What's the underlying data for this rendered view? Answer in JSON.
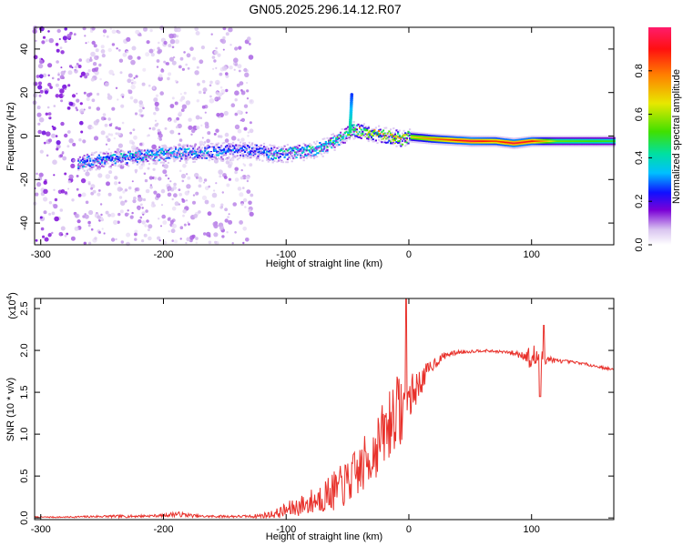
{
  "title": "GN05.2025.296.14.12.R07",
  "chart_data": [
    {
      "type": "heatmap",
      "xlabel": "Height of straight line (km)",
      "ylabel": "Frequency (Hz)",
      "xlim": [
        -305,
        167
      ],
      "ylim": [
        -50,
        50
      ],
      "xticks": [
        -300,
        -200,
        -100,
        0,
        100
      ],
      "yticks": [
        -40,
        -20,
        0,
        20,
        40
      ],
      "colorbar": {
        "label": "Normalized spectral amplitude",
        "range": [
          0,
          1
        ],
        "ticks": [
          "0.0",
          "0.2",
          "0.4",
          "0.6",
          "0.8"
        ],
        "tick_values": [
          0.0,
          0.2,
          0.4,
          0.6,
          0.8
        ]
      },
      "ridge": {
        "x": [
          -270,
          -240,
          -200,
          -160,
          -130,
          -110,
          -90,
          -70,
          -55,
          -45,
          -35,
          -25,
          -15,
          -5,
          0,
          20,
          50,
          70,
          85,
          100,
          120,
          167
        ],
        "y": [
          -12,
          -10,
          -8,
          -7,
          -6,
          -8,
          -7,
          -5,
          0,
          3,
          2,
          1,
          0,
          -1,
          0,
          -1,
          -2,
          -2,
          -3,
          -2,
          -2,
          -2
        ],
        "amplitude": [
          0.35,
          0.4,
          0.4,
          0.35,
          0.3,
          0.4,
          0.45,
          0.45,
          0.5,
          0.6,
          0.7,
          0.75,
          0.8,
          0.7,
          0.65,
          0.8,
          0.95,
          0.85,
          0.95,
          0.9,
          0.55,
          0.5
        ]
      }
    },
    {
      "type": "line",
      "xlabel": "Height of straight line (km)",
      "ylabel": "SNR (10 * v/v)",
      "y_multiplier": "(x10",
      "y_multiplier_exp": "4",
      "y_multiplier_close": ")",
      "xlim": [
        -305,
        167
      ],
      "ylim": [
        -0.02,
        2.62
      ],
      "xticks": [
        -300,
        -200,
        -100,
        0,
        100
      ],
      "yticks": [
        0.0,
        0.5,
        1.0,
        1.5,
        2.0,
        2.5
      ],
      "ytick_labels": [
        "0.0",
        "0.5",
        "1.0",
        "1.5",
        "2.0",
        "2.5"
      ],
      "series": [
        {
          "name": "SNR",
          "color": "#e8302a",
          "x": [
            -305,
            -280,
            -250,
            -230,
            -200,
            -190,
            -170,
            -150,
            -130,
            -120,
            -110,
            -100,
            -90,
            -80,
            -70,
            -60,
            -50,
            -40,
            -30,
            -20,
            -15,
            -10,
            -5,
            0,
            10,
            20,
            30,
            40,
            60,
            80,
            95,
            100,
            105,
            110,
            120,
            140,
            167
          ],
          "y": [
            0.01,
            0.01,
            0.02,
            0.02,
            0.03,
            0.05,
            0.02,
            0.02,
            0.02,
            0.03,
            0.05,
            0.1,
            0.15,
            0.2,
            0.28,
            0.35,
            0.45,
            0.6,
            0.8,
            1.05,
            1.2,
            1.35,
            1.3,
            1.45,
            1.65,
            1.85,
            1.95,
            1.98,
            2.0,
            1.98,
            1.95,
            1.9,
            1.95,
            1.92,
            1.88,
            1.85,
            1.77
          ],
          "noise_amplitude": [
            0.01,
            0.01,
            0.02,
            0.02,
            0.02,
            0.04,
            0.02,
            0.02,
            0.02,
            0.04,
            0.06,
            0.12,
            0.15,
            0.2,
            0.25,
            0.3,
            0.35,
            0.4,
            0.45,
            0.5,
            0.6,
            0.5,
            0.6,
            0.35,
            0.2,
            0.1,
            0.05,
            0.03,
            0.02,
            0.02,
            0.08,
            0.25,
            0.2,
            0.1,
            0.03,
            0.02,
            0.02
          ]
        }
      ],
      "peaks": [
        {
          "x": -2,
          "y": 2.62
        },
        {
          "x": 110,
          "y": 2.3
        },
        {
          "x": 107,
          "y": 1.45
        }
      ]
    }
  ]
}
